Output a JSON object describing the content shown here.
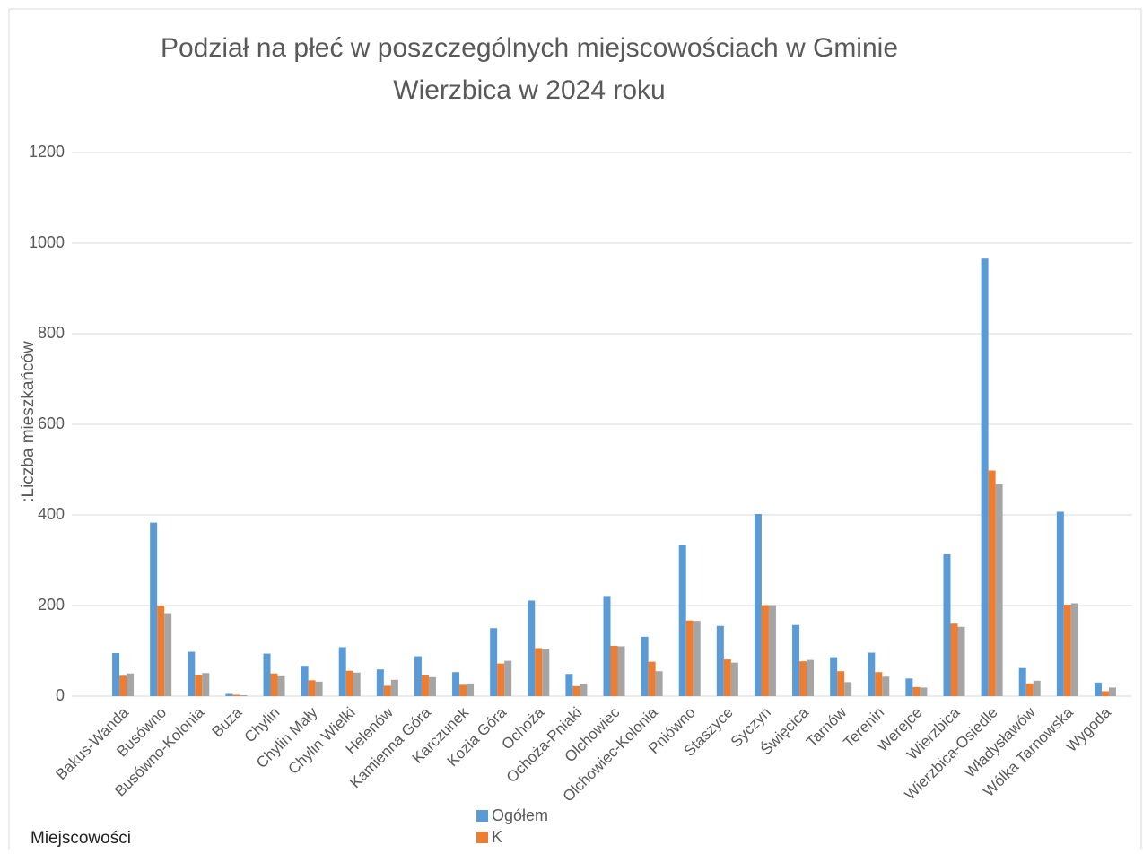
{
  "chart_data": {
    "type": "bar",
    "title": [
      "Podział na płeć w poszczególnych miejscowościach w Gminie",
      "Wierzbica w 2024   roku"
    ],
    "y_label": ":Liczba mieszkańców",
    "x_label": "Miejscowości",
    "categories": [
      "Bakus-Wanda",
      "Busówno",
      "Busówno-Kolonia",
      "Buza",
      "Chylin",
      "Chylin Mały",
      "Chylin Wielki",
      "Helenów",
      "Kamienna Góra",
      "Karczunek",
      "Kozia Góra",
      "Ochoża",
      "Ochoża-Pniaki",
      "Olchowiec",
      "Olchowiec-Kolonia",
      "Pniówno",
      "Staszyce",
      "Syczyn",
      "Święcica",
      "Tarnów",
      "Terenin",
      "Werejce",
      "Wierzbica",
      "Wierzbica-Osiedle",
      "Władysławów",
      "Wólka Tarnowska",
      "Wygoda"
    ],
    "series": [
      {
        "name": "Ogółem",
        "color": "#5b9bd5",
        "values": [
          95,
          383,
          98,
          5,
          94,
          67,
          108,
          59,
          88,
          53,
          150,
          211,
          49,
          221,
          131,
          333,
          155,
          402,
          157,
          86,
          96,
          39,
          313,
          966,
          62,
          407,
          30
        ]
      },
      {
        "name": "K",
        "color": "#ed7d31",
        "values": [
          45,
          200,
          47,
          3,
          50,
          35,
          56,
          23,
          46,
          25,
          72,
          106,
          22,
          111,
          76,
          167,
          81,
          201,
          77,
          55,
          53,
          20,
          160,
          498,
          28,
          202,
          11
        ]
      },
      {
        "color": "#a5a5a5",
        "values": [
          50,
          183,
          51,
          2,
          44,
          32,
          52,
          36,
          42,
          28,
          78,
          105,
          27,
          110,
          55,
          166,
          74,
          201,
          80,
          31,
          43,
          19,
          153,
          468,
          34,
          205,
          19
        ]
      }
    ],
    "ylim": [
      0,
      1200
    ],
    "yticks": [
      0,
      200,
      400,
      600,
      800,
      1000,
      1200
    ],
    "grid": true
  }
}
